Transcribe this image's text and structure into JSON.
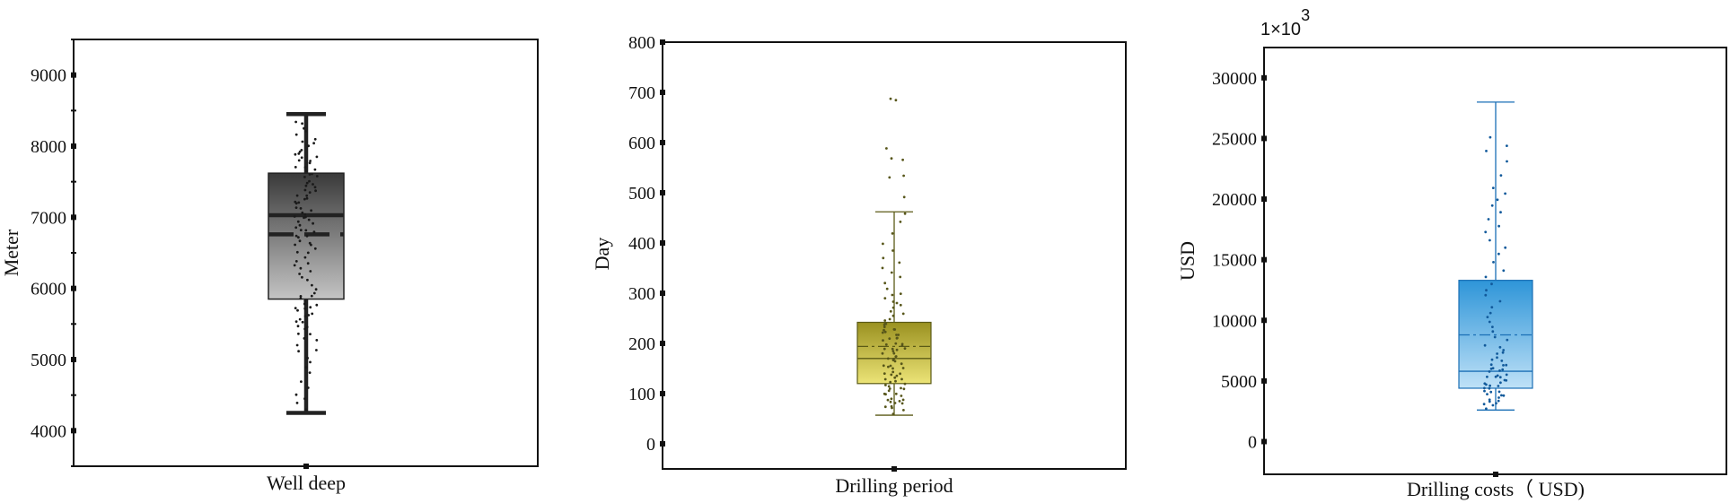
{
  "chart_data": [
    {
      "type": "box",
      "xlabel": "",
      "ylabel": "Meter",
      "categories": [
        "Well deep"
      ],
      "ylim": [
        3500,
        9500
      ],
      "yticks": [
        4000,
        5000,
        6000,
        7000,
        8000,
        9000
      ],
      "stats": {
        "min": 4250,
        "q1": 5850,
        "median": 7030,
        "mean": 6760,
        "q3": 7620,
        "max": 8450
      },
      "points": [
        4300,
        4380,
        4450,
        4520,
        4600,
        4700,
        4800,
        4880,
        4950,
        5020,
        5100,
        5150,
        5200,
        5260,
        5300,
        5350,
        5380,
        5420,
        5450,
        5480,
        5520,
        5550,
        5580,
        5600,
        5620,
        5650,
        5680,
        5700,
        5720,
        5740,
        5760,
        5780,
        5800,
        5820,
        5850,
        5880,
        5900,
        5950,
        6000,
        6050,
        6100,
        6150,
        6200,
        6250,
        6300,
        6320,
        6350,
        6400,
        6450,
        6500,
        6520,
        6550,
        6600,
        6620,
        6650,
        6680,
        6700,
        6720,
        6750,
        6780,
        6800,
        6820,
        6850,
        6880,
        6900,
        6920,
        6950,
        6980,
        7000,
        7020,
        7050,
        7080,
        7100,
        7120,
        7150,
        7180,
        7200,
        7220,
        7250,
        7280,
        7300,
        7320,
        7350,
        7380,
        7400,
        7420,
        7450,
        7480,
        7500,
        7520,
        7550,
        7580,
        7600,
        7620,
        7650,
        7680,
        7700,
        7720,
        7750,
        7780,
        7800,
        7820,
        7850,
        7880,
        7900,
        7930,
        7960,
        8000,
        8030,
        8060,
        8100,
        8150,
        8200,
        8250,
        8300,
        8350
      ],
      "colors": {
        "box_top": "#3a3a3a",
        "box_bottom": "#c4c4c4",
        "line": "#222222",
        "points": "#1a1a1a"
      }
    },
    {
      "type": "box",
      "xlabel": "",
      "ylabel": "Day",
      "categories": [
        "Drilling period"
      ],
      "ylim": [
        -50,
        800
      ],
      "yticks": [
        0,
        100,
        200,
        300,
        400,
        500,
        600,
        700,
        800
      ],
      "stats": {
        "min": 57,
        "q1": 120,
        "median": 170,
        "mean": 194,
        "q3": 242,
        "max": 462
      },
      "points": [
        60,
        65,
        70,
        72,
        75,
        78,
        80,
        82,
        85,
        88,
        90,
        92,
        95,
        98,
        100,
        102,
        105,
        108,
        110,
        112,
        115,
        118,
        120,
        122,
        125,
        128,
        130,
        132,
        135,
        138,
        140,
        142,
        145,
        148,
        150,
        152,
        155,
        158,
        160,
        162,
        165,
        168,
        170,
        172,
        175,
        178,
        180,
        182,
        185,
        188,
        190,
        192,
        195,
        198,
        200,
        202,
        205,
        208,
        210,
        212,
        215,
        218,
        220,
        222,
        225,
        228,
        230,
        232,
        235,
        238,
        240,
        245,
        250,
        255,
        260,
        265,
        270,
        275,
        280,
        285,
        290,
        295,
        300,
        310,
        320,
        330,
        340,
        350,
        360,
        370,
        385,
        400,
        420,
        440,
        460,
        490,
        530,
        535,
        565,
        570,
        590,
        685,
        688
      ],
      "colors": {
        "box_top": "#9a9120",
        "box_bottom": "#ece477",
        "line": "#5b5a16",
        "points": "#57561a"
      }
    },
    {
      "type": "box",
      "xlabel": "",
      "ylabel": "USD",
      "categories": [
        "Drilling costs（ USD)"
      ],
      "multiplier": "1×10",
      "multiplier_exp": "3",
      "ylim": [
        -2700,
        32500
      ],
      "yticks": [
        0,
        5000,
        10000,
        15000,
        20000,
        25000,
        30000
      ],
      "stats": {
        "min": 2600,
        "q1": 4400,
        "median": 5800,
        "mean": 8800,
        "q3": 13300,
        "max": 28000
      },
      "points": [
        2700,
        2900,
        3100,
        3200,
        3300,
        3400,
        3500,
        3600,
        3700,
        3800,
        3900,
        4000,
        4100,
        4200,
        4300,
        4400,
        4500,
        4600,
        4700,
        4800,
        4900,
        5000,
        5100,
        5200,
        5300,
        5400,
        5500,
        5600,
        5700,
        5800,
        5900,
        6000,
        6100,
        6200,
        6300,
        6400,
        6600,
        6800,
        7000,
        7200,
        7400,
        7600,
        7800,
        8000,
        8300,
        8600,
        9000,
        9400,
        9800,
        10200,
        10600,
        11000,
        11500,
        12000,
        12500,
        13000,
        13600,
        14200,
        14800,
        15400,
        16000,
        16600,
        17200,
        17800,
        18400,
        19000,
        19500,
        20000,
        20500,
        21000,
        22000,
        23000,
        24000,
        24500,
        25000
      ],
      "colors": {
        "box_top": "#2e95d8",
        "box_bottom": "#bfe1f7",
        "line": "#1a6fb5",
        "points": "#125a9b"
      }
    }
  ]
}
